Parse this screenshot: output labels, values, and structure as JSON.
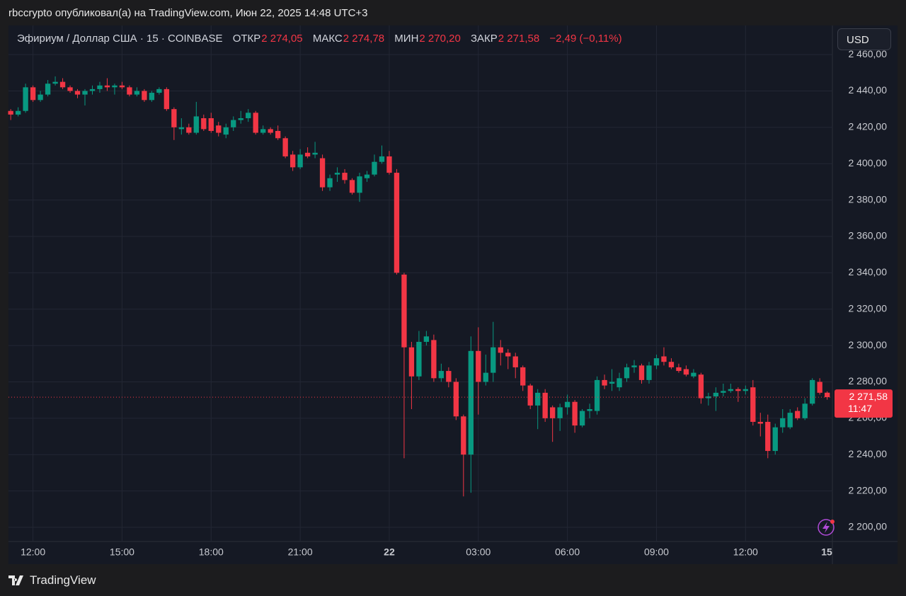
{
  "top_bar": {
    "text": "rbccrypto опубликовал(а) на TradingView.com, Июн 22, 2025 14:48 UTC+3"
  },
  "footer": {
    "brand": "TradingView"
  },
  "chart_data": {
    "type": "candlestick",
    "header": {
      "symbol": "Эфириум / Доллар США · 15 · COINBASE",
      "open_label": "ОТКР",
      "open_value": "2 274,05",
      "high_label": "МАКС",
      "high_value": "2 274,78",
      "low_label": "МИН",
      "low_value": "2 270,20",
      "close_label": "ЗАКР",
      "close_value": "2 271,58",
      "change": "−2,49 (−0,11%)"
    },
    "currency": "USD",
    "last_price_label": "2 271,58",
    "countdown": "11:47",
    "up_color": "#089981",
    "down_color": "#f23645",
    "grid": true,
    "xlim": [
      -0.3,
      110.7
    ],
    "xticks": [
      {
        "value": 3,
        "label": "12:00"
      },
      {
        "value": 15,
        "label": "15:00"
      },
      {
        "value": 27,
        "label": "18:00"
      },
      {
        "value": 39,
        "label": "21:00"
      },
      {
        "value": 51,
        "label": "22"
      },
      {
        "value": 63,
        "label": "03:00"
      },
      {
        "value": 75,
        "label": "06:00"
      },
      {
        "value": 87,
        "label": "09:00"
      },
      {
        "value": 99,
        "label": "12:00"
      },
      {
        "value": 111,
        "label": "15"
      }
    ],
    "ylim": [
      2192.2,
      2476.0
    ],
    "yticks": [
      {
        "value": 2200,
        "label": "2 200,00"
      },
      {
        "value": 2220,
        "label": "2 220,00"
      },
      {
        "value": 2240,
        "label": "2 240,00"
      },
      {
        "value": 2260,
        "label": "2 260,00"
      },
      {
        "value": 2280,
        "label": "2 280,00"
      },
      {
        "value": 2300,
        "label": "2 300,00"
      },
      {
        "value": 2320,
        "label": "2 320,00"
      },
      {
        "value": 2340,
        "label": "2 340,00"
      },
      {
        "value": 2360,
        "label": "2 360,00"
      },
      {
        "value": 2380,
        "label": "2 380,00"
      },
      {
        "value": 2400,
        "label": "2 400,00"
      },
      {
        "value": 2420,
        "label": "2 420,00"
      },
      {
        "value": 2440,
        "label": "2 440,00"
      },
      {
        "value": 2460,
        "label": "2 460,00"
      }
    ],
    "open": [
      2429,
      2427,
      2429,
      2442,
      2435,
      2438,
      2444,
      2445,
      2442,
      2440,
      2438,
      2440,
      2441,
      2443,
      2442,
      2443,
      2442,
      2438,
      2440,
      2435,
      2439,
      2441,
      2430,
      2419,
      2420,
      2417,
      2425,
      2425,
      2421,
      2416,
      2420,
      2424,
      2425,
      2428,
      2417,
      2419,
      2418,
      2414,
      2405,
      2398,
      2406,
      2405,
      2403,
      2387,
      2394,
      2395,
      2391,
      2384,
      2392,
      2394,
      2401,
      2404,
      2395,
      2339,
      2299,
      2283,
      2302,
      2303,
      2282,
      2286,
      2280,
      2261,
      2240,
      2297,
      2280,
      2285,
      2299,
      2296,
      2294,
      2288,
      2278,
      2267,
      2274,
      2266,
      2260,
      2266,
      2269,
      2256,
      2264,
      2264,
      2281,
      2279,
      2277,
      2282,
      2288,
      2289,
      2281,
      2289,
      2294,
      2291,
      2288,
      2287,
      2283,
      2284,
      2271,
      2272,
      2274,
      2275,
      2276,
      2275,
      2277,
      2258,
      2258,
      2242,
      2255,
      2255,
      2264,
      2260,
      2268,
      2280,
      2274.05
    ],
    "high": [
      2430,
      2431,
      2444,
      2443,
      2440,
      2446,
      2448,
      2447,
      2443,
      2441,
      2441,
      2443,
      2445,
      2447,
      2444,
      2445,
      2443,
      2442,
      2441,
      2440,
      2442,
      2442,
      2431,
      2425,
      2422,
      2434,
      2427,
      2428,
      2423,
      2422,
      2426,
      2429,
      2430,
      2429,
      2421,
      2420,
      2421,
      2415,
      2407,
      2408,
      2409,
      2412,
      2405,
      2394,
      2398,
      2397,
      2392,
      2395,
      2396,
      2405,
      2410,
      2407,
      2397,
      2340,
      2302,
      2308,
      2308,
      2306,
      2290,
      2288,
      2282,
      2262,
      2305,
      2310,
      2295,
      2313,
      2303,
      2298,
      2296,
      2289,
      2279,
      2276,
      2276,
      2267,
      2268,
      2273,
      2270,
      2265,
      2268,
      2283,
      2284,
      2287,
      2285,
      2290,
      2292,
      2290,
      2291,
      2295,
      2299,
      2293,
      2290,
      2289,
      2287,
      2285,
      2274,
      2277,
      2279,
      2279,
      2277,
      2278,
      2281,
      2263,
      2262,
      2257,
      2265,
      2265,
      2266,
      2271,
      2282,
      2282,
      2274.78
    ],
    "low": [
      2424,
      2426,
      2428,
      2434,
      2434,
      2437,
      2443,
      2441,
      2439,
      2436,
      2432,
      2438,
      2439,
      2440,
      2438,
      2441,
      2437,
      2437,
      2434,
      2434,
      2438,
      2429,
      2413,
      2416,
      2416,
      2416,
      2418,
      2417,
      2415,
      2414,
      2418,
      2422,
      2423,
      2416,
      2416,
      2416,
      2413,
      2403,
      2396,
      2397,
      2403,
      2403,
      2385,
      2385,
      2390,
      2389,
      2383,
      2379,
      2390,
      2393,
      2400,
      2394,
      2339,
      2238,
      2265,
      2281,
      2300,
      2280,
      2280,
      2277,
      2259,
      2217,
      2219,
      2262,
      2278,
      2280,
      2289,
      2287,
      2282,
      2275,
      2265,
      2254,
      2258,
      2247,
      2253,
      2262,
      2252,
      2255,
      2260,
      2262,
      2276,
      2275,
      2275,
      2280,
      2285,
      2279,
      2279,
      2287,
      2289,
      2287,
      2285,
      2283,
      2282,
      2268,
      2267,
      2264,
      2272,
      2274,
      2269,
      2273,
      2256,
      2250,
      2238,
      2240,
      2252,
      2254,
      2259,
      2259,
      2267,
      2273,
      2270.2
    ],
    "close": [
      2427,
      2429,
      2442,
      2435,
      2438,
      2444,
      2445,
      2442,
      2440,
      2438,
      2440,
      2441,
      2443,
      2442,
      2443,
      2442,
      2438,
      2440,
      2435,
      2439,
      2441,
      2430,
      2420,
      2420,
      2417,
      2426,
      2419,
      2418,
      2417,
      2420,
      2424,
      2425,
      2428,
      2417,
      2419,
      2417,
      2414,
      2404,
      2398,
      2405,
      2404,
      2406,
      2387,
      2392,
      2395,
      2391,
      2384,
      2393,
      2394,
      2401,
      2404,
      2395,
      2340,
      2299,
      2283,
      2302,
      2305,
      2282,
      2286,
      2280,
      2261,
      2240,
      2297,
      2280,
      2285,
      2299,
      2296,
      2294,
      2288,
      2278,
      2267,
      2274,
      2260,
      2260,
      2266,
      2269,
      2256,
      2264,
      2265,
      2281,
      2278,
      2280,
      2282,
      2288,
      2289,
      2281,
      2289,
      2293,
      2291,
      2288,
      2286,
      2284,
      2285,
      2271,
      2272,
      2274,
      2275,
      2276,
      2275,
      2276,
      2258,
      2257,
      2242,
      2255,
      2260,
      2263,
      2260,
      2268,
      2281,
      2274,
      2271.58
    ]
  }
}
